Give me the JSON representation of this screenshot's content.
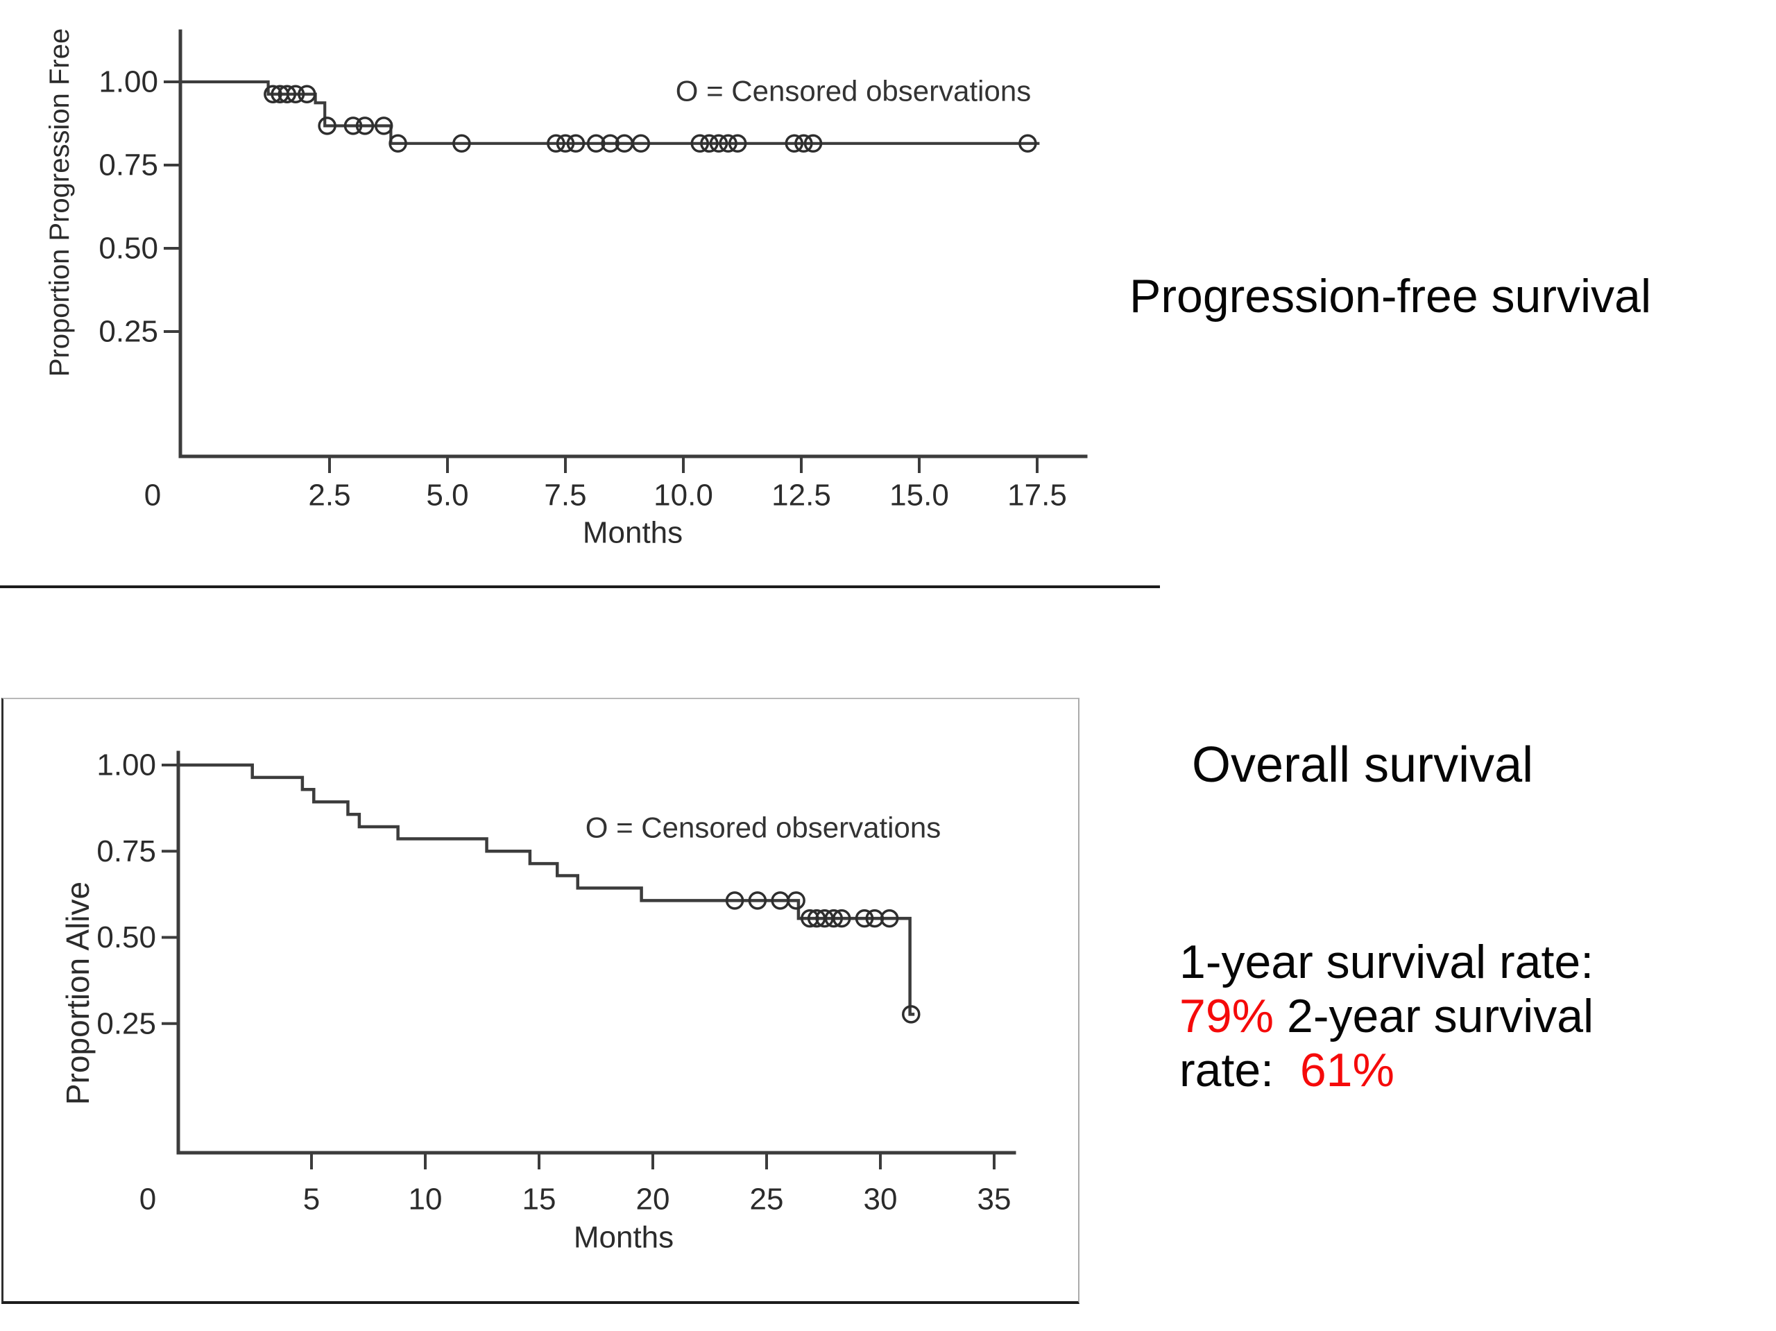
{
  "page": {
    "background": "#ffffff",
    "text_color": "#060606",
    "accent_red": "#f50a0a"
  },
  "annotations": {
    "pfs_title": "Progression-free survival",
    "os_title": "Overall survival",
    "rate_line1": "1-year survival rate:",
    "rate_1yr_value": "79%",
    "rate_line2_rest": " 2-year survival",
    "rate_line3_black": "rate:  ",
    "rate_2yr_value": "61%"
  },
  "chart_data": [
    {
      "type": "line",
      "subtype": "kaplan-meier-step",
      "legend": "O = Censored observations",
      "legend_position": "top-right",
      "xlabel": "Months",
      "ylabel": "Proportion Progression Free",
      "xlim": [
        0,
        18.5
      ],
      "ylim": [
        0,
        1.08
      ],
      "grid": false,
      "x_zero_label": "0",
      "xticks": {
        "values": [
          2.5,
          5,
          7.5,
          10,
          12.5,
          15,
          17.5
        ],
        "labels": [
          "2.5",
          "5.0",
          "7.5",
          "10.0",
          "12.5",
          "15.0",
          "17.5"
        ]
      },
      "yticks": {
        "values": [
          1.0,
          0.75,
          0.5,
          0.25
        ],
        "labels": [
          "1.00",
          "0.75",
          "0.50",
          "0.25"
        ]
      },
      "steps": [
        [
          0,
          1.0
        ],
        [
          1.2,
          0.963
        ],
        [
          2.2,
          0.937
        ],
        [
          2.4,
          0.868
        ],
        [
          3.8,
          0.815
        ]
      ],
      "end_time": 17.55,
      "censored": [
        {
          "t": 1.3,
          "p": 0.963
        },
        {
          "t": 1.45,
          "p": 0.963
        },
        {
          "t": 1.6,
          "p": 0.963
        },
        {
          "t": 1.78,
          "p": 0.963
        },
        {
          "t": 2.02,
          "p": 0.963
        },
        {
          "t": 2.45,
          "p": 0.868
        },
        {
          "t": 3.0,
          "p": 0.868
        },
        {
          "t": 3.25,
          "p": 0.868
        },
        {
          "t": 3.65,
          "p": 0.868
        },
        {
          "t": 3.95,
          "p": 0.815
        },
        {
          "t": 5.3,
          "p": 0.815
        },
        {
          "t": 7.3,
          "p": 0.815
        },
        {
          "t": 7.5,
          "p": 0.815
        },
        {
          "t": 7.72,
          "p": 0.815
        },
        {
          "t": 8.15,
          "p": 0.815
        },
        {
          "t": 8.45,
          "p": 0.815
        },
        {
          "t": 8.75,
          "p": 0.815
        },
        {
          "t": 9.1,
          "p": 0.815
        },
        {
          "t": 10.35,
          "p": 0.815
        },
        {
          "t": 10.55,
          "p": 0.815
        },
        {
          "t": 10.75,
          "p": 0.815
        },
        {
          "t": 10.95,
          "p": 0.815
        },
        {
          "t": 11.15,
          "p": 0.815
        },
        {
          "t": 12.35,
          "p": 0.815
        },
        {
          "t": 12.55,
          "p": 0.815
        },
        {
          "t": 12.75,
          "p": 0.815
        },
        {
          "t": 17.3,
          "p": 0.815
        }
      ]
    },
    {
      "type": "line",
      "subtype": "kaplan-meier-step",
      "legend": "O = Censored observations",
      "legend_position": "top-right",
      "xlabel": "Months",
      "ylabel": "Proportion Alive",
      "xlim": [
        0,
        36
      ],
      "ylim": [
        0,
        1.08
      ],
      "grid": false,
      "x_zero_label": "0",
      "xticks": {
        "values": [
          5,
          10,
          15,
          20,
          25,
          30,
          35
        ],
        "labels": [
          "5",
          "10",
          "15",
          "20",
          "25",
          "30",
          "35"
        ]
      },
      "yticks": {
        "values": [
          1.0,
          0.75,
          0.5,
          0.25
        ],
        "labels": [
          "1.00",
          "0.75",
          "0.50",
          "0.25"
        ]
      },
      "steps": [
        [
          0,
          1.0
        ],
        [
          2.4,
          0.964
        ],
        [
          4.6,
          0.929
        ],
        [
          5.1,
          0.893
        ],
        [
          6.6,
          0.857
        ],
        [
          7.1,
          0.821
        ],
        [
          8.8,
          0.786
        ],
        [
          12.7,
          0.75
        ],
        [
          14.6,
          0.714
        ],
        [
          15.8,
          0.679
        ],
        [
          16.7,
          0.643
        ],
        [
          19.5,
          0.607
        ],
        [
          26.4,
          0.555
        ],
        [
          31.3,
          0.277
        ]
      ],
      "end_time": 31.5,
      "censored": [
        {
          "t": 23.6,
          "p": 0.607
        },
        {
          "t": 24.6,
          "p": 0.607
        },
        {
          "t": 25.6,
          "p": 0.607
        },
        {
          "t": 26.3,
          "p": 0.607
        },
        {
          "t": 26.9,
          "p": 0.555
        },
        {
          "t": 27.2,
          "p": 0.555
        },
        {
          "t": 27.55,
          "p": 0.555
        },
        {
          "t": 27.95,
          "p": 0.555
        },
        {
          "t": 28.3,
          "p": 0.555
        },
        {
          "t": 29.3,
          "p": 0.555
        },
        {
          "t": 29.75,
          "p": 0.555
        },
        {
          "t": 30.4,
          "p": 0.555
        },
        {
          "t": 31.35,
          "p": 0.277
        }
      ],
      "survival_rates": {
        "1_year": "79%",
        "2_year": "61%"
      }
    }
  ]
}
